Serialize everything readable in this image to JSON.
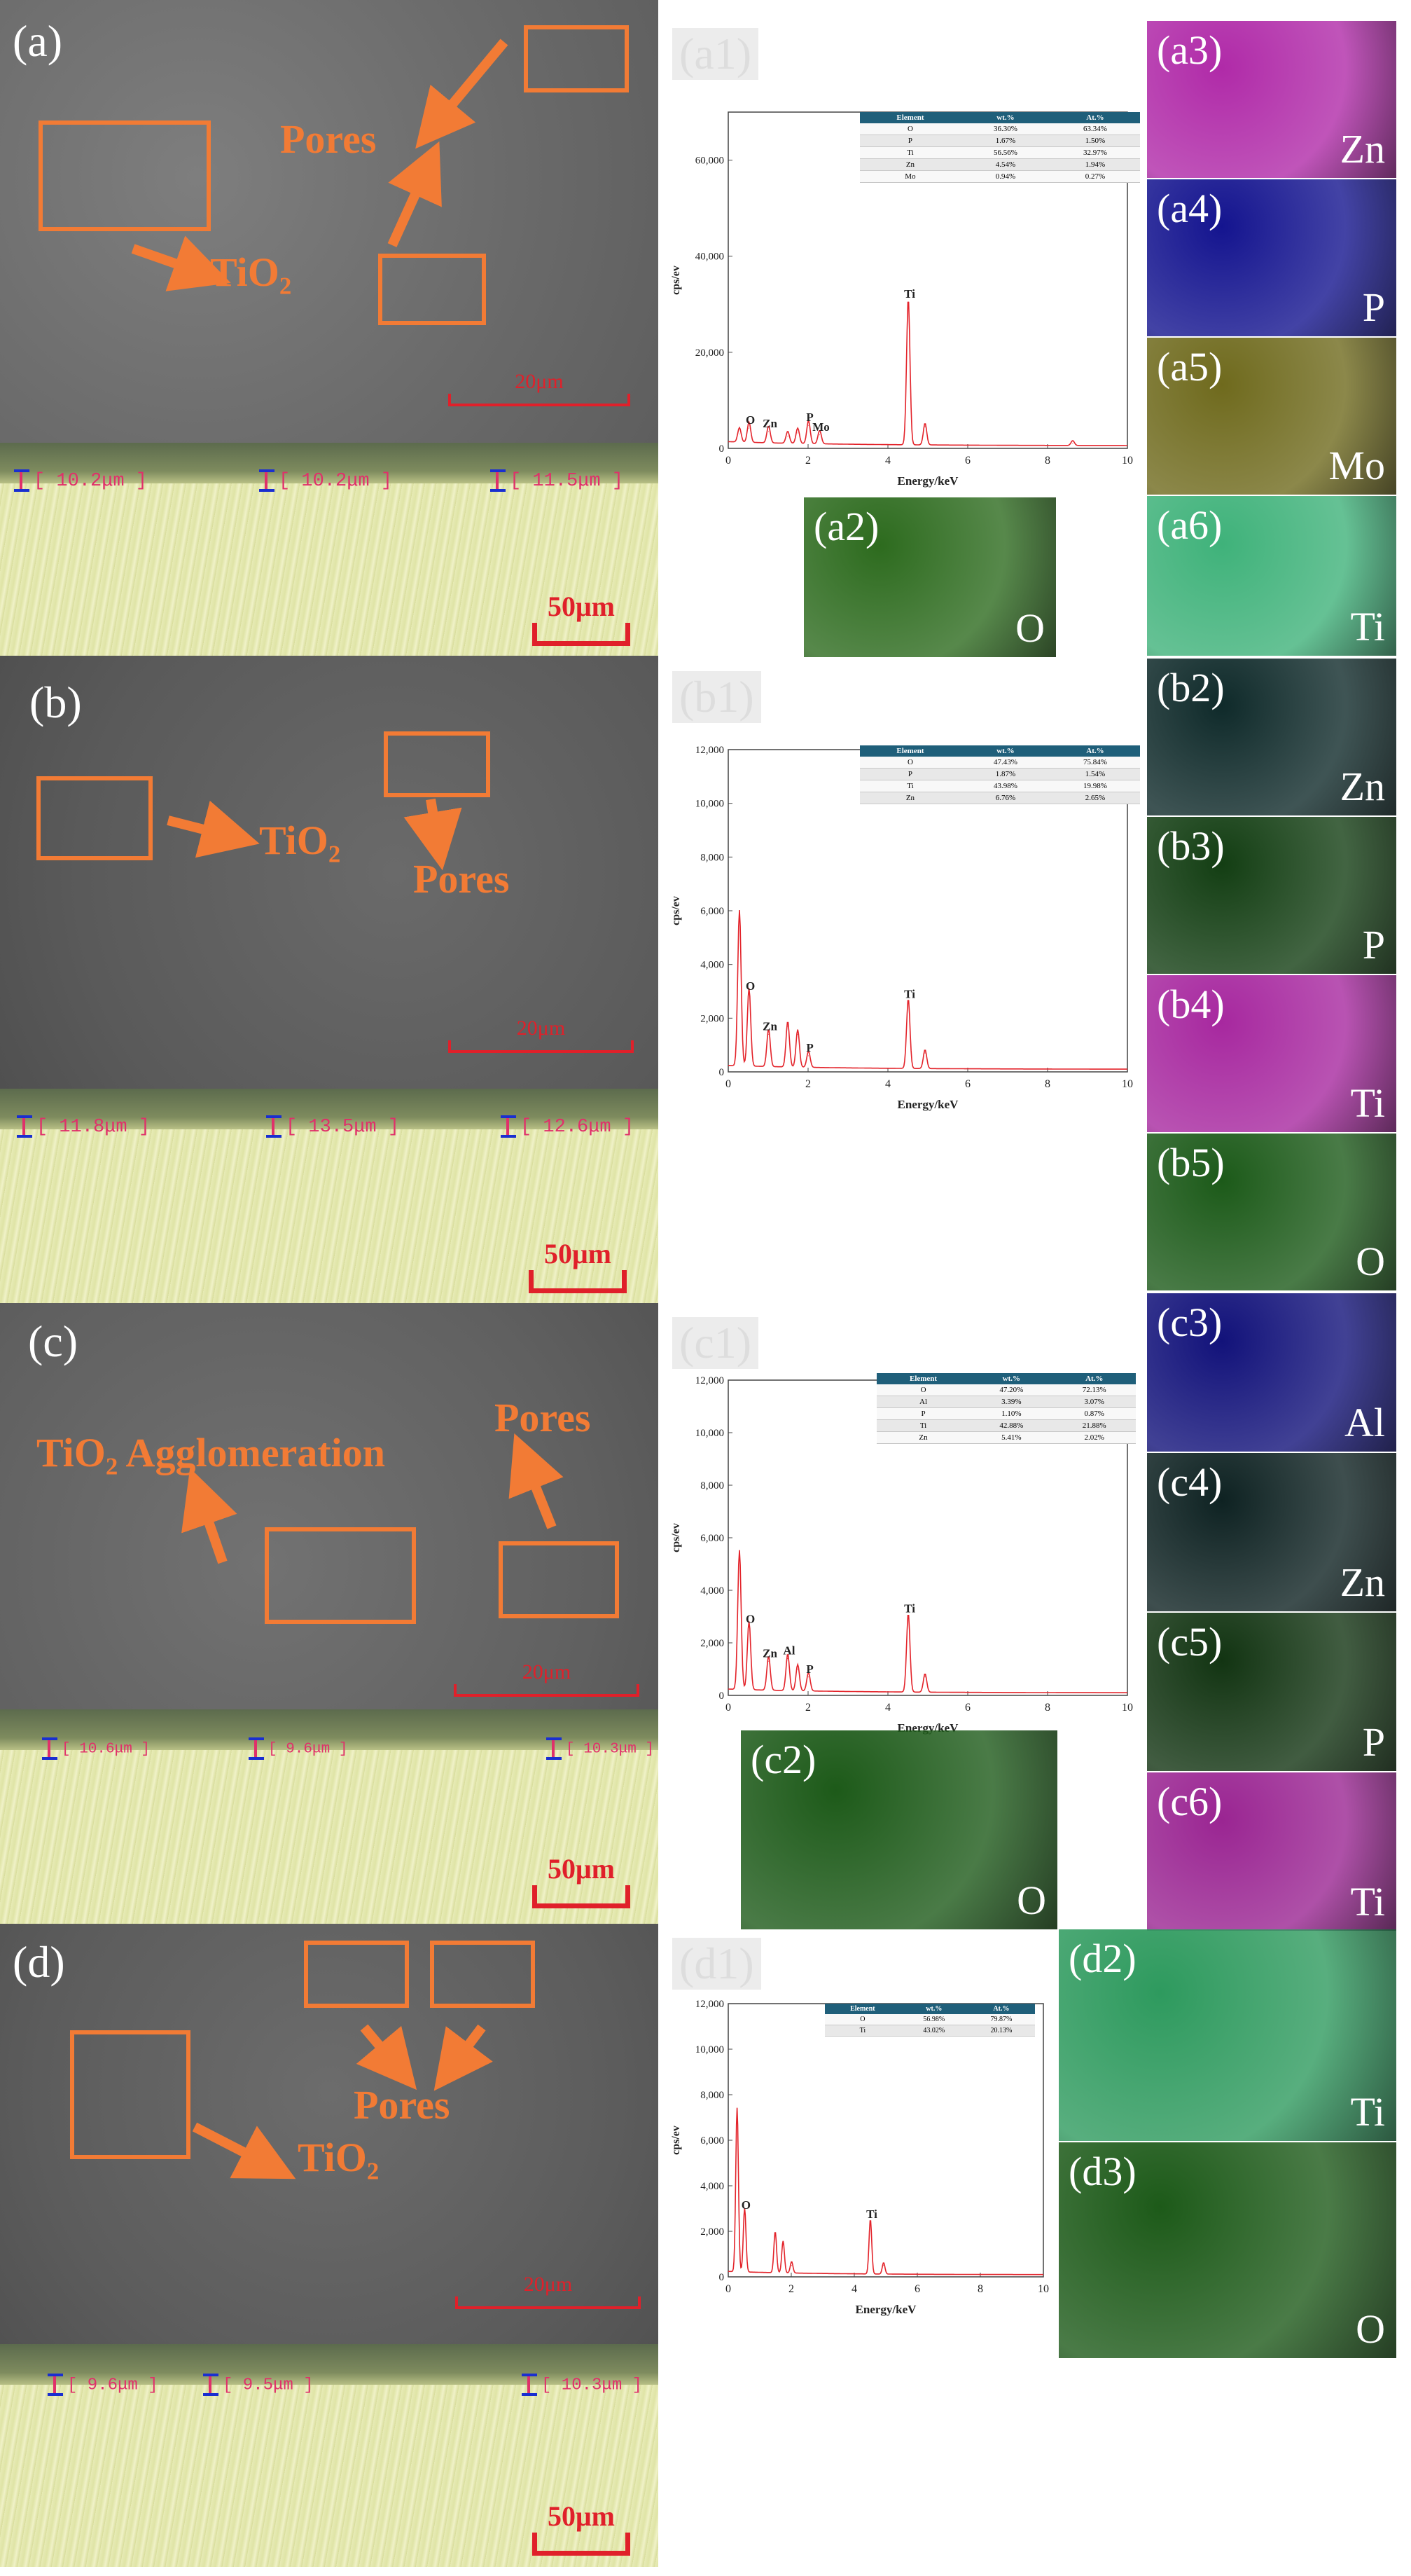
{
  "annotations": {
    "pores": "Pores",
    "tio2": "TiO₂",
    "tio2_agglomeration": "TiO₂ Agglomeration"
  },
  "rows": [
    {
      "sem": {
        "label": "(a)",
        "scale": "20μm"
      },
      "om": {
        "scale": "50μm",
        "thickness": [
          "[ 10.2μm ]",
          "[ 10.2μm ]",
          "[ 11.5μm ]"
        ]
      },
      "eds_label": "(a1)",
      "table": {
        "headers": [
          "Element",
          "wt.%",
          "At.%"
        ],
        "rows": [
          [
            "O",
            "36.30%",
            "63.34%"
          ],
          [
            "P",
            "1.67%",
            "1.50%"
          ],
          [
            "Ti",
            "56.56%",
            "32.97%"
          ],
          [
            "Zn",
            "4.54%",
            "1.94%"
          ],
          [
            "Mo",
            "0.94%",
            "0.27%"
          ]
        ]
      },
      "maps": [
        {
          "label": "(a2)",
          "element": "O",
          "color": "#2d6b1e"
        },
        {
          "label": "(a3)",
          "element": "Zn",
          "color": "#b02aa8"
        },
        {
          "label": "(a4)",
          "element": "P",
          "color": "#14148f"
        },
        {
          "label": "(a5)",
          "element": "Mo",
          "color": "#6f6a1d"
        },
        {
          "label": "(a6)",
          "element": "Ti",
          "color": "#3fb27a"
        }
      ]
    },
    {
      "sem": {
        "label": "(b)",
        "scale": "20μm"
      },
      "om": {
        "scale": "50μm",
        "thickness": [
          "[ 11.8μm ]",
          "[ 13.5μm ]",
          "[ 12.6μm ]"
        ]
      },
      "eds_label": "(b1)",
      "table": {
        "headers": [
          "Element",
          "wt.%",
          "At.%"
        ],
        "rows": [
          [
            "O",
            "47.43%",
            "75.84%"
          ],
          [
            "P",
            "1.87%",
            "1.54%"
          ],
          [
            "Ti",
            "43.98%",
            "19.98%"
          ],
          [
            "Zn",
            "6.76%",
            "2.65%"
          ]
        ]
      },
      "maps": [
        {
          "label": "(b2)",
          "element": "Zn",
          "color": "#0f2a2a"
        },
        {
          "label": "(b3)",
          "element": "P",
          "color": "#133e13"
        },
        {
          "label": "(b4)",
          "element": "Ti",
          "color": "#a7289f"
        },
        {
          "label": "(b5)",
          "element": "O",
          "color": "#1c5a19"
        }
      ]
    },
    {
      "sem": {
        "label": "(c)",
        "scale": "20μm"
      },
      "om": {
        "scale": "50μm",
        "thickness": [
          "[ 10.6μm ]",
          "[ 9.6μm ]",
          "[ 10.3μm ]"
        ]
      },
      "eds_label": "(c1)",
      "table": {
        "headers": [
          "Element",
          "wt.%",
          "At.%"
        ],
        "rows": [
          [
            "O",
            "47.20%",
            "72.13%"
          ],
          [
            "Al",
            "3.39%",
            "3.07%"
          ],
          [
            "P",
            "1.10%",
            "0.87%"
          ],
          [
            "Ti",
            "42.88%",
            "21.88%"
          ],
          [
            "Zn",
            "5.41%",
            "2.02%"
          ]
        ]
      },
      "maps": [
        {
          "label": "(c2)",
          "element": "O",
          "color": "#1d5a19"
        },
        {
          "label": "(c3)",
          "element": "Al",
          "color": "#12127a"
        },
        {
          "label": "(c4)",
          "element": "Zn",
          "color": "#0e2222"
        },
        {
          "label": "(c5)",
          "element": "P",
          "color": "#123412"
        },
        {
          "label": "(c6)",
          "element": "Ti",
          "color": "#9a2592"
        }
      ]
    },
    {
      "sem": {
        "label": "(d)",
        "scale": "20μm"
      },
      "om": {
        "scale": "50μm",
        "thickness": [
          "[ 9.6μm ]",
          "[ 9.5μm ]",
          "[ 10.3μm ]"
        ]
      },
      "eds_label": "(d1)",
      "table": {
        "headers": [
          "Element",
          "wt.%",
          "At.%"
        ],
        "rows": [
          [
            "O",
            "56.98%",
            "79.87%"
          ],
          [
            "Ti",
            "43.02%",
            "20.13%"
          ]
        ]
      },
      "maps": [
        {
          "label": "(d2)",
          "element": "Ti",
          "color": "#2e9a5e"
        },
        {
          "label": "(d3)",
          "element": "O",
          "color": "#1d5a19"
        }
      ]
    }
  ],
  "chart_data": [
    {
      "type": "line",
      "panel": "(a1)",
      "xlabel": "Energy/keV",
      "ylabel": "cps/ev",
      "xlim": [
        0,
        10
      ],
      "ylim": [
        0,
        70000
      ],
      "xticks": [
        0,
        2,
        4,
        6,
        8,
        10
      ],
      "yticks": [
        0,
        20000,
        40000,
        60000
      ],
      "ytick_labels": [
        "0",
        "20,000",
        "40,000",
        "60,000"
      ],
      "peaks": [
        [
          0.28,
          3000
        ],
        [
          0.52,
          4200
        ],
        [
          1.01,
          3500
        ],
        [
          1.49,
          2500
        ],
        [
          1.74,
          3200
        ],
        [
          2.01,
          4800
        ],
        [
          2.29,
          2800
        ],
        [
          4.51,
          30500
        ],
        [
          4.93,
          4500
        ],
        [
          8.63,
          1000
        ]
      ],
      "peak_labels": [
        {
          "text": "O",
          "x": 0.52,
          "y": 4200
        },
        {
          "text": "Zn",
          "x": 1.01,
          "y": 3500
        },
        {
          "text": "P",
          "x": 2.01,
          "y": 4800
        },
        {
          "text": "Mo",
          "x": 2.29,
          "y": 2800
        },
        {
          "text": "Ti",
          "x": 4.51,
          "y": 30500
        }
      ]
    },
    {
      "type": "line",
      "panel": "(b1)",
      "xlabel": "Energy/keV",
      "ylabel": "cps/ev",
      "xlim": [
        0,
        10
      ],
      "ylim": [
        0,
        12000
      ],
      "xticks": [
        0,
        2,
        4,
        6,
        8,
        10
      ],
      "yticks": [
        0,
        2000,
        4000,
        6000,
        8000,
        10000,
        12000
      ],
      "ytick_labels": [
        "0",
        "2,000",
        "4,000",
        "6,000",
        "8,000",
        "10,000",
        "12,000"
      ],
      "peaks": [
        [
          0.28,
          5800
        ],
        [
          0.52,
          2900
        ],
        [
          1.01,
          1400
        ],
        [
          1.49,
          1700
        ],
        [
          1.74,
          1400
        ],
        [
          2.01,
          600
        ],
        [
          4.51,
          2600
        ],
        [
          4.93,
          700
        ]
      ],
      "peak_labels": [
        {
          "text": "O",
          "x": 0.52,
          "y": 2900
        },
        {
          "text": "Zn",
          "x": 1.01,
          "y": 1400
        },
        {
          "text": "P",
          "x": 2.01,
          "y": 600
        },
        {
          "text": "Ti",
          "x": 4.51,
          "y": 2600
        }
      ]
    },
    {
      "type": "line",
      "panel": "(c1)",
      "xlabel": "Energy/keV",
      "ylabel": "cps/ev",
      "xlim": [
        0,
        10
      ],
      "ylim": [
        0,
        12000
      ],
      "xticks": [
        0,
        2,
        4,
        6,
        8,
        10
      ],
      "yticks": [
        0,
        2000,
        4000,
        6000,
        8000,
        10000,
        12000
      ],
      "ytick_labels": [
        "0",
        "2,000",
        "4,000",
        "6,000",
        "8,000",
        "10,000",
        "12,000"
      ],
      "peaks": [
        [
          0.28,
          5300
        ],
        [
          0.52,
          2600
        ],
        [
          1.01,
          1300
        ],
        [
          1.49,
          1400
        ],
        [
          1.74,
          1000
        ],
        [
          2.01,
          700
        ],
        [
          4.51,
          3000
        ],
        [
          4.93,
          700
        ]
      ],
      "peak_labels": [
        {
          "text": "O",
          "x": 0.52,
          "y": 2600
        },
        {
          "text": "Zn",
          "x": 1.01,
          "y": 1300
        },
        {
          "text": "Al",
          "x": 1.49,
          "y": 1400
        },
        {
          "text": "P",
          "x": 2.01,
          "y": 700
        },
        {
          "text": "Ti",
          "x": 4.51,
          "y": 3000
        }
      ]
    },
    {
      "type": "line",
      "panel": "(d1)",
      "xlabel": "Energy/keV",
      "ylabel": "cps/ev",
      "xlim": [
        0,
        10
      ],
      "ylim": [
        0,
        12000
      ],
      "xticks": [
        0,
        2,
        4,
        6,
        8,
        10
      ],
      "yticks": [
        0,
        2000,
        4000,
        6000,
        8000,
        10000,
        12000
      ],
      "ytick_labels": [
        "0",
        "2,000",
        "4,000",
        "6,000",
        "8,000",
        "10,000",
        "12,000"
      ],
      "peaks": [
        [
          0.28,
          7200
        ],
        [
          0.52,
          2800
        ],
        [
          1.49,
          1800
        ],
        [
          1.74,
          1400
        ],
        [
          2.01,
          500
        ],
        [
          4.51,
          2400
        ],
        [
          4.93,
          500
        ]
      ],
      "peak_labels": [
        {
          "text": "O",
          "x": 0.52,
          "y": 2800
        },
        {
          "text": "Ti",
          "x": 4.51,
          "y": 2400
        }
      ]
    }
  ]
}
